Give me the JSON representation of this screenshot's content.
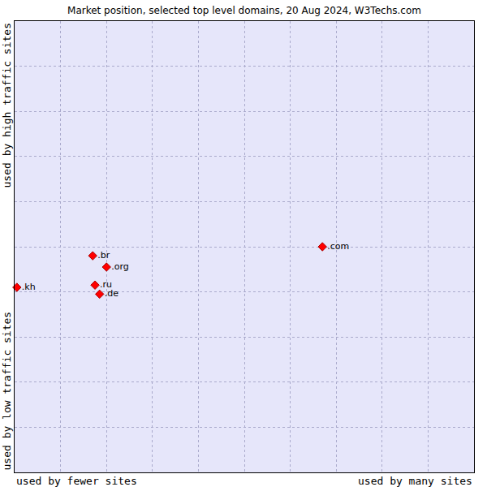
{
  "chart_data": {
    "type": "scatter",
    "title": "Market position, selected top level domains, 20 Aug 2024, W3Techs.com",
    "xlabel": [
      "used by fewer sites",
      "used by many sites"
    ],
    "ylabel": [
      "used by low traffic sites",
      "used by high traffic sites"
    ],
    "labels": [
      ".kh",
      ".br",
      ".org",
      ".ru",
      ".de",
      ".com"
    ],
    "x": [
      0.05,
      1.7,
      2.0,
      1.75,
      1.85,
      6.7
    ],
    "y": [
      4.1,
      4.8,
      4.55,
      4.15,
      3.95,
      5.0
    ],
    "color": "#ff0000",
    "marker": "diamond",
    "xlim": [
      0,
      10
    ],
    "ylim": [
      0,
      10
    ],
    "xticks": [
      0,
      1,
      2,
      3,
      4,
      5,
      6,
      7,
      8,
      9,
      10
    ],
    "yticks": [
      0,
      1,
      2,
      3,
      4,
      5,
      6,
      7,
      8,
      9,
      10
    ],
    "grid": true,
    "tick_labels": false
  }
}
